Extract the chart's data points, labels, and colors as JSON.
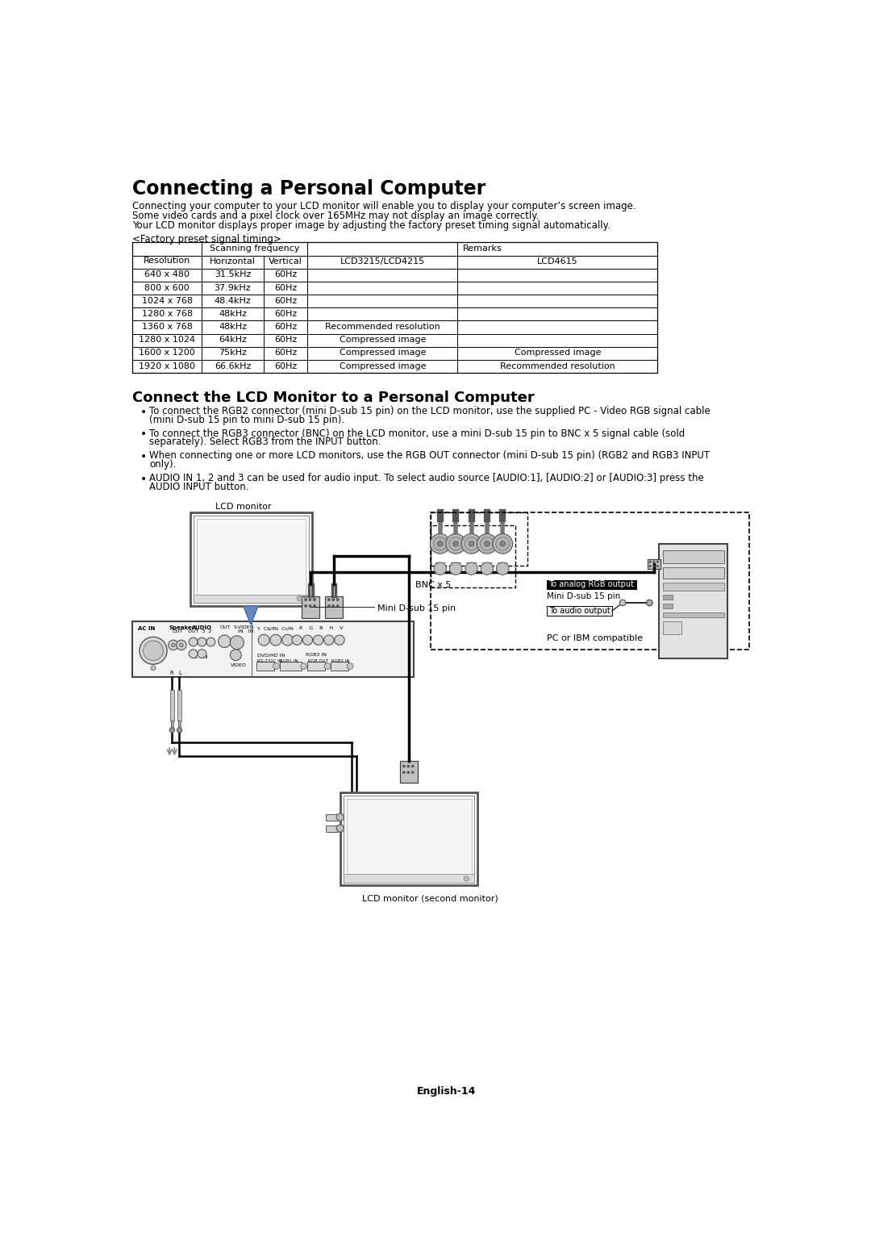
{
  "title": "Connecting a Personal Computer",
  "intro_lines": [
    "Connecting your computer to your LCD monitor will enable you to display your computer’s screen image.",
    "Some video cards and a pixel clock over 165MHz may not display an image correctly.",
    "Your LCD monitor displays proper image by adjusting the factory preset timing signal automatically."
  ],
  "factory_label": "<Factory preset signal timing>",
  "table_rows": [
    [
      "640 x 480",
      "31.5kHz",
      "60Hz",
      "",
      ""
    ],
    [
      "800 x 600",
      "37.9kHz",
      "60Hz",
      "",
      ""
    ],
    [
      "1024 x 768",
      "48.4kHz",
      "60Hz",
      "",
      ""
    ],
    [
      "1280 x 768",
      "48kHz",
      "60Hz",
      "",
      ""
    ],
    [
      "1360 x 768",
      "48kHz",
      "60Hz",
      "Recommended resolution",
      ""
    ],
    [
      "1280 x 1024",
      "64kHz",
      "60Hz",
      "Compressed image",
      ""
    ],
    [
      "1600 x 1200",
      "75kHz",
      "60Hz",
      "Compressed image",
      "Compressed image"
    ],
    [
      "1920 x 1080",
      "66.6kHz",
      "60Hz",
      "Compressed image",
      "Recommended resolution"
    ]
  ],
  "section2_title": "Connect the LCD Monitor to a Personal Computer",
  "bullets": [
    "To connect the RGB2 connector (mini D-sub 15 pin) on the LCD monitor, use the supplied PC - Video RGB signal cable\n(mini D-sub 15 pin to mini D-sub 15 pin).",
    "To connect the RGB3 connector (BNC) on the LCD monitor, use a mini D-sub 15 pin to BNC x 5 signal cable (sold\nseparately). Select RGB3 from the INPUT button.",
    "When connecting one or more LCD monitors, use the RGB OUT connector (mini D-sub 15 pin) (RGB2 and RGB3 INPUT\nonly).",
    "AUDIO IN 1, 2 and 3 can be used for audio input. To select audio source [AUDIO:1], [AUDIO:2] or [AUDIO:3] press the\nAUDIO INPUT button."
  ],
  "page_footer": "English-14",
  "bg_color": "#ffffff"
}
